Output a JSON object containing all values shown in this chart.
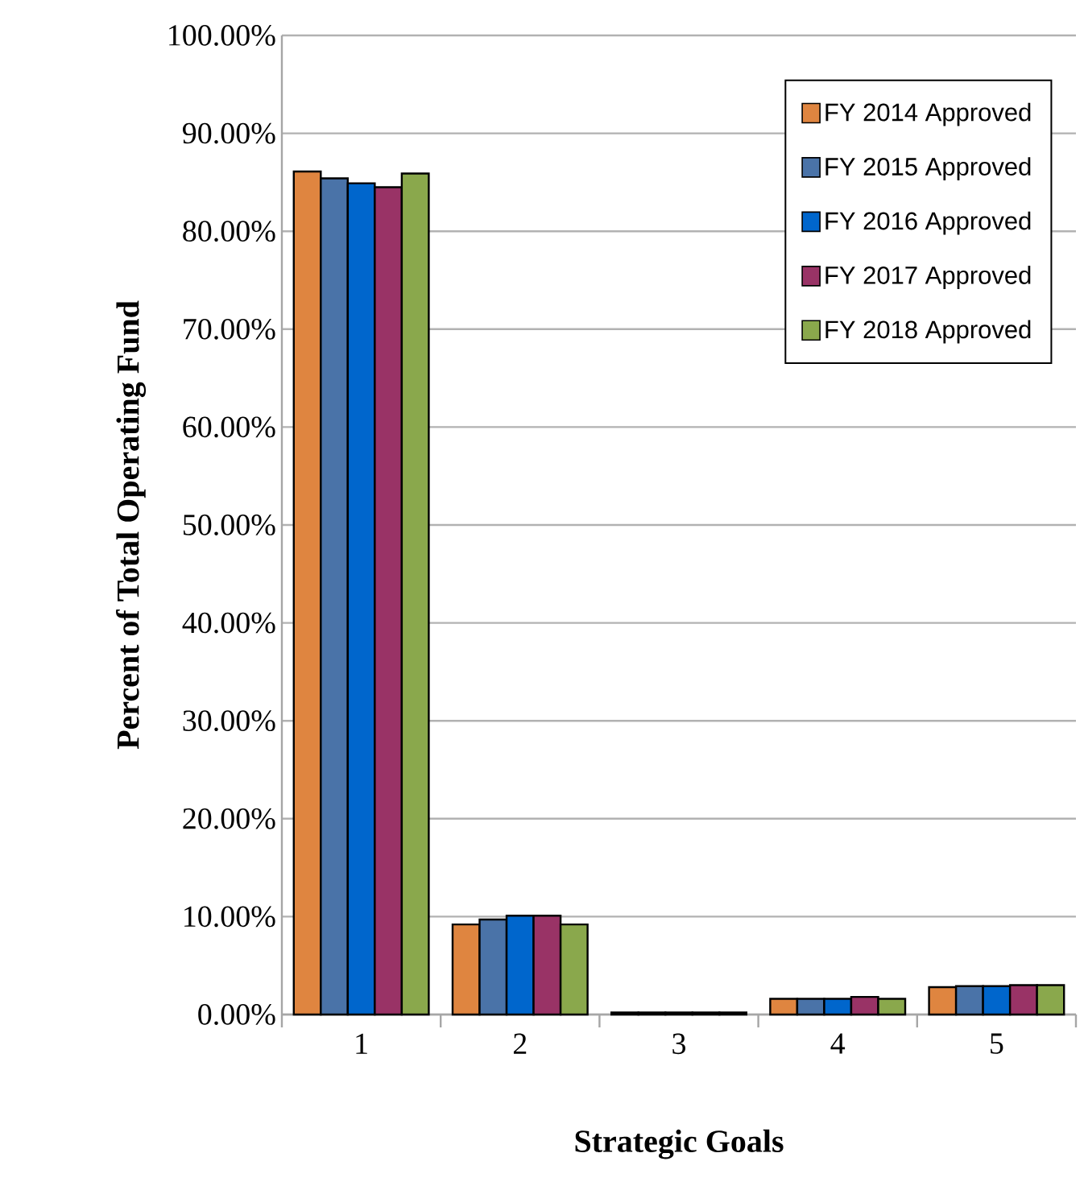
{
  "chart_data": {
    "type": "bar",
    "xlabel": "Strategic Goals",
    "ylabel": "Percent of Total Operating Fund",
    "categories": [
      "1",
      "2",
      "3",
      "4",
      "5"
    ],
    "series": [
      {
        "name": "FY 2014 Approved",
        "color": "#df8540",
        "values": [
          86.1,
          9.2,
          0.2,
          1.6,
          2.8
        ]
      },
      {
        "name": "FY 2015 Approved",
        "color": "#4a73a8",
        "values": [
          85.4,
          9.7,
          0.2,
          1.6,
          2.9
        ]
      },
      {
        "name": "FY 2016 Approved",
        "color": "#0066cc",
        "values": [
          84.9,
          10.1,
          0.2,
          1.6,
          2.9
        ]
      },
      {
        "name": "FY 2017 Approved",
        "color": "#993366",
        "values": [
          84.5,
          10.1,
          0.2,
          1.8,
          3.0
        ]
      },
      {
        "name": "FY 2018 Approved",
        "color": "#8aa84c",
        "values": [
          85.9,
          9.2,
          0.2,
          1.6,
          3.0
        ]
      }
    ],
    "ylim": [
      0,
      100
    ],
    "yticks": [
      {
        "value": 0,
        "label": "0.00%"
      },
      {
        "value": 10,
        "label": "10.00%"
      },
      {
        "value": 20,
        "label": "20.00%"
      },
      {
        "value": 30,
        "label": "30.00%"
      },
      {
        "value": 40,
        "label": "40.00%"
      },
      {
        "value": 50,
        "label": "50.00%"
      },
      {
        "value": 60,
        "label": "60.00%"
      },
      {
        "value": 70,
        "label": "70.00%"
      },
      {
        "value": 80,
        "label": "80.00%"
      },
      {
        "value": 90,
        "label": "90.00%"
      },
      {
        "value": 100,
        "label": "100.00%"
      }
    ],
    "grid": "y",
    "legend": "top right"
  }
}
